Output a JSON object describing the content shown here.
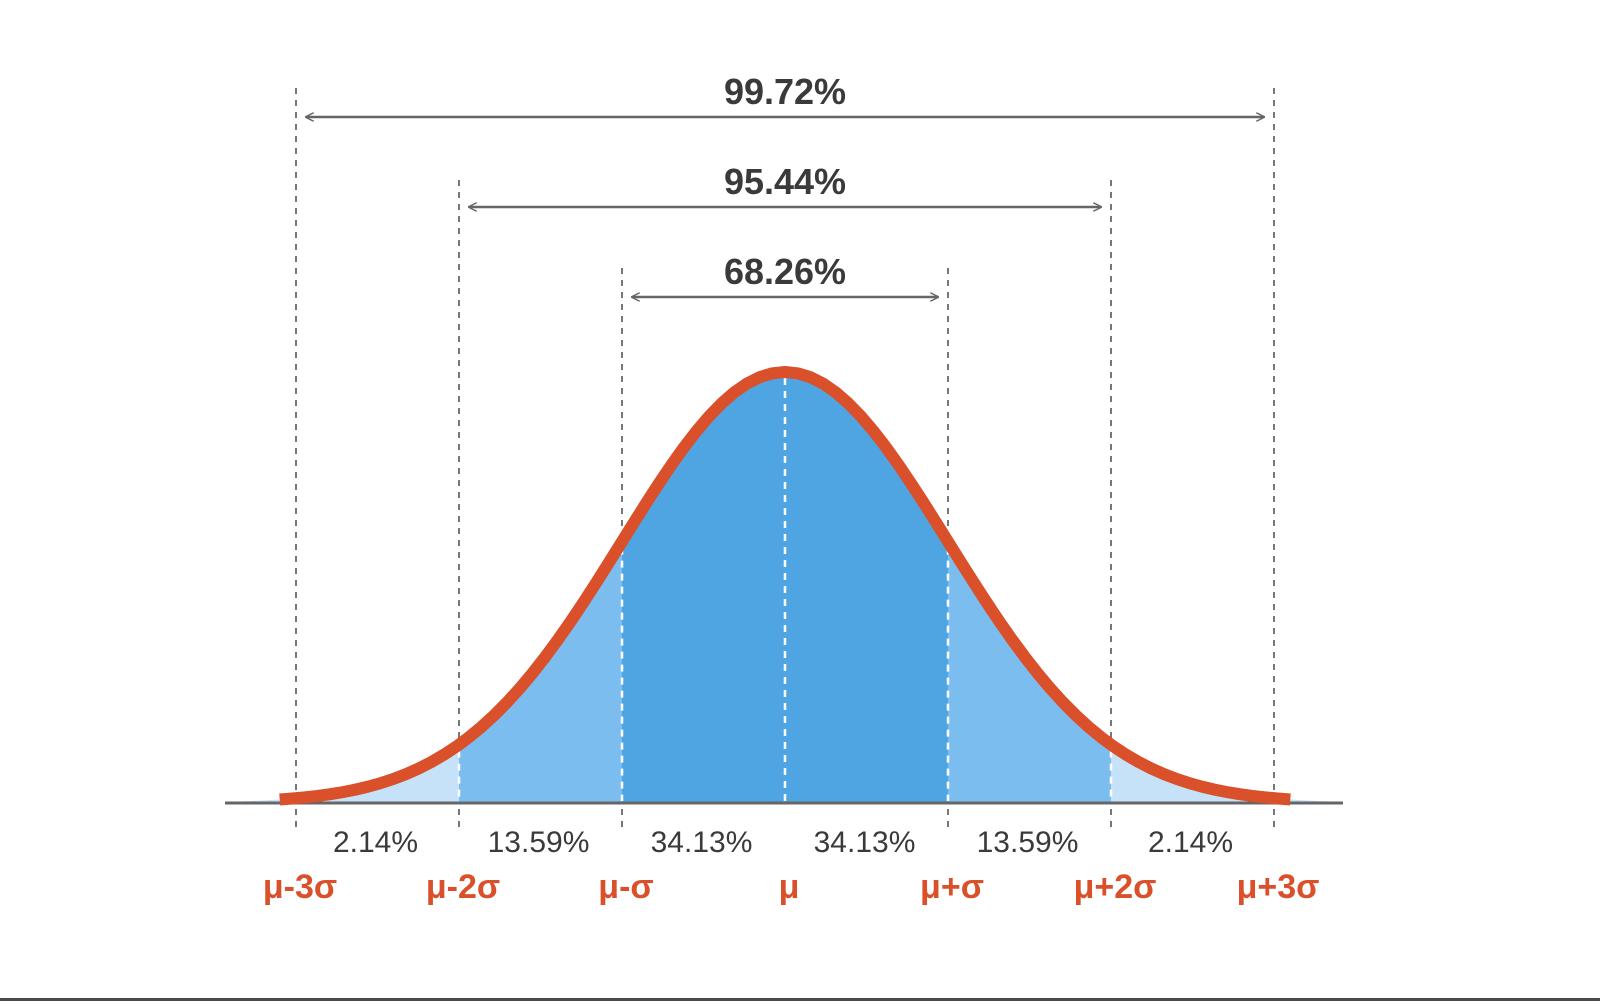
{
  "chart_data": {
    "type": "area",
    "x": [
      -3,
      -2,
      -1,
      0,
      1,
      2,
      3
    ],
    "tick_labels": [
      "μ-3σ",
      "μ-2σ",
      "μ-σ",
      "μ",
      "μ+σ",
      "μ+2σ",
      "μ+3σ"
    ],
    "xlim": [
      -3.34,
      3.34
    ],
    "regions": [
      {
        "from": -3,
        "to": -2,
        "label": "2.14%"
      },
      {
        "from": -2,
        "to": -1,
        "label": "13.59%"
      },
      {
        "from": -1,
        "to": 0,
        "label": "34.13%"
      },
      {
        "from": 0,
        "to": 1,
        "label": "34.13%"
      },
      {
        "from": 1,
        "to": 2,
        "label": "13.59%"
      },
      {
        "from": 2,
        "to": 3,
        "label": "2.14%"
      }
    ],
    "spans": [
      {
        "from": -3,
        "to": 3,
        "label": "99.72%"
      },
      {
        "from": -2,
        "to": 2,
        "label": "95.44%"
      },
      {
        "from": -1,
        "to": 1,
        "label": "68.26%"
      }
    ],
    "grid": false,
    "colors": {
      "curve": "#d9502a",
      "tick_label": "#d9502a",
      "fill_inner": "#4ea5e2",
      "fill_middle": "#7cbdf0",
      "fill_outer": "#c5e2f8",
      "axis": "#666666",
      "arrow": "#666666",
      "guide": "#777777"
    }
  }
}
